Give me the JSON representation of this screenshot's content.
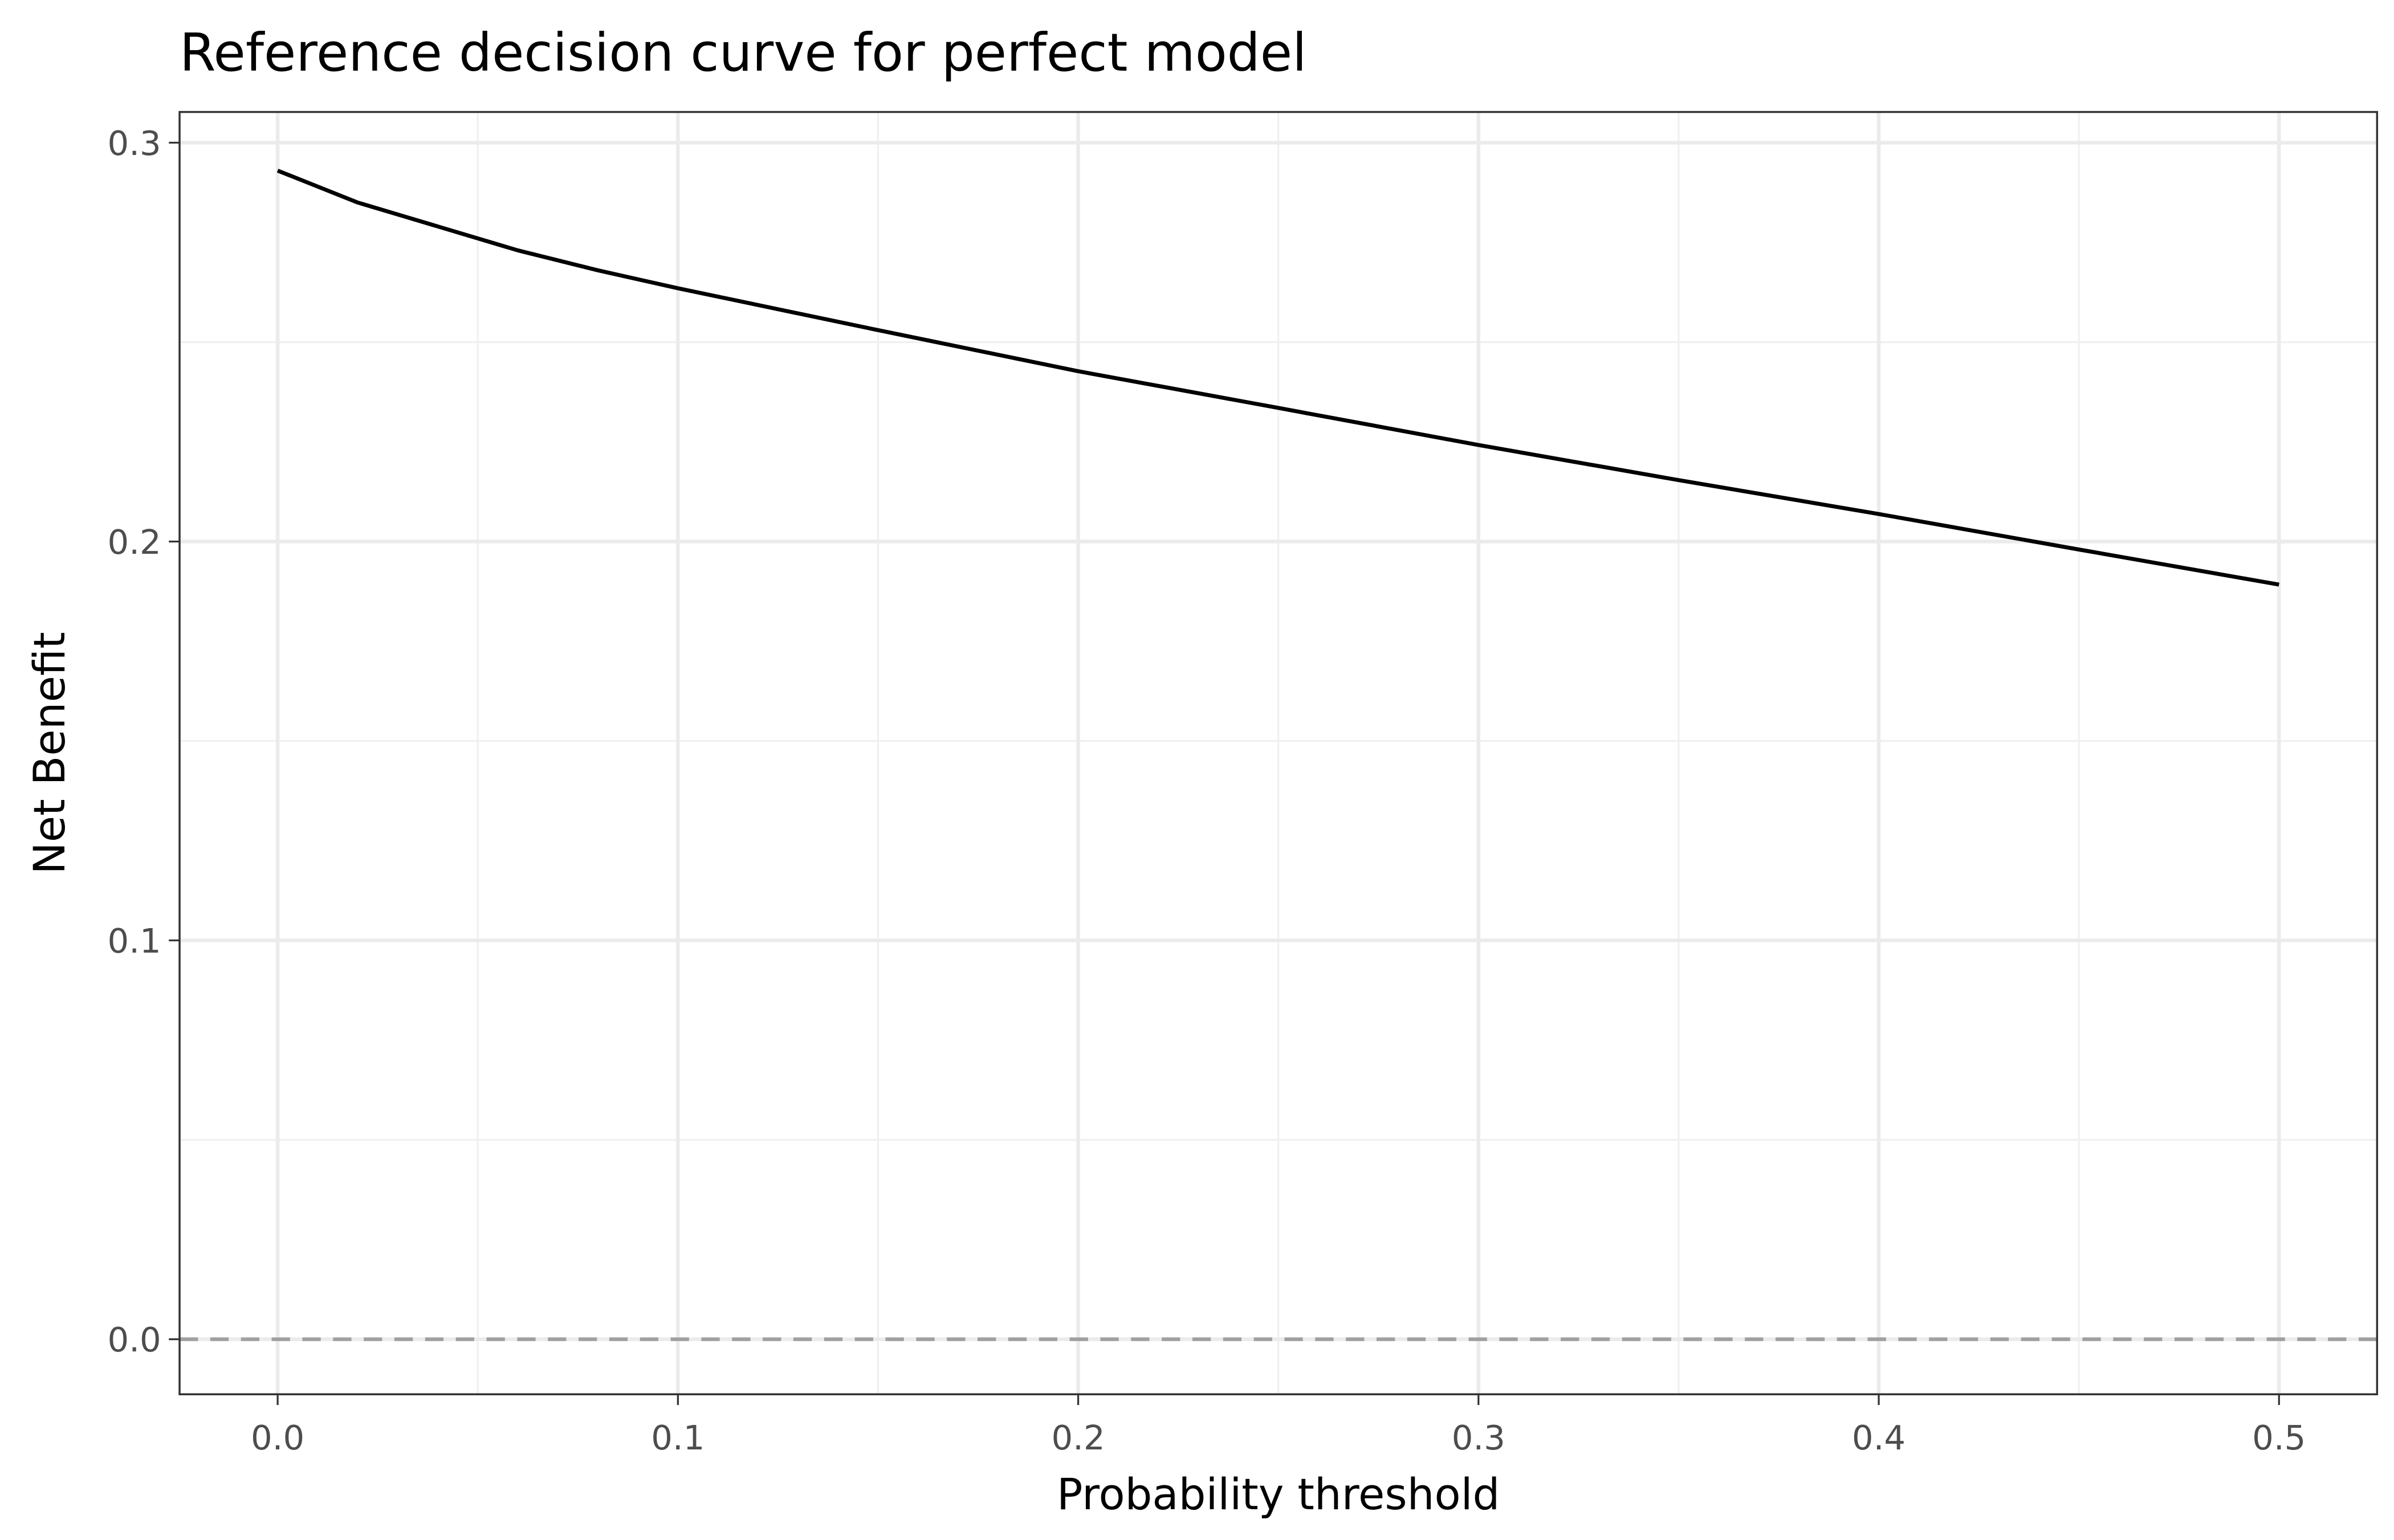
{
  "chart_data": {
    "type": "line",
    "title": "Reference decision curve for perfect model",
    "x_label": "Probability threshold",
    "y_label": "Net Benefit",
    "x": [
      0,
      0.02,
      0.04,
      0.06,
      0.08,
      0.1,
      0.15,
      0.2,
      0.25,
      0.3,
      0.35,
      0.4,
      0.45,
      0.5
    ],
    "series": [
      {
        "color": "#000000",
        "values": [
          0.293,
          0.285,
          0.279,
          0.273,
          0.268,
          0.2635,
          0.253,
          0.2427,
          0.2335,
          0.2242,
          0.2154,
          0.2069,
          0.198,
          0.1892
        ]
      }
    ],
    "xlim": [
      -0.0245,
      0.5245
    ],
    "ylim": [
      -0.0138,
      0.3077
    ],
    "xticks": [
      {
        "value": 0,
        "label": "0.0"
      },
      0.1,
      0.2,
      0.3,
      0.4,
      0.5
    ],
    "yticks": [
      {
        "value": 0,
        "label": "0.0"
      },
      0.1,
      0.2,
      0.3
    ],
    "minor_xticks": [
      0.05,
      0.15,
      0.25,
      0.35,
      0.45
    ],
    "minor_yticks": [
      0.05,
      0.15,
      0.25
    ],
    "hline": {
      "y": 0,
      "color": "#a0a0a0",
      "dashed": true
    },
    "grid": true
  }
}
